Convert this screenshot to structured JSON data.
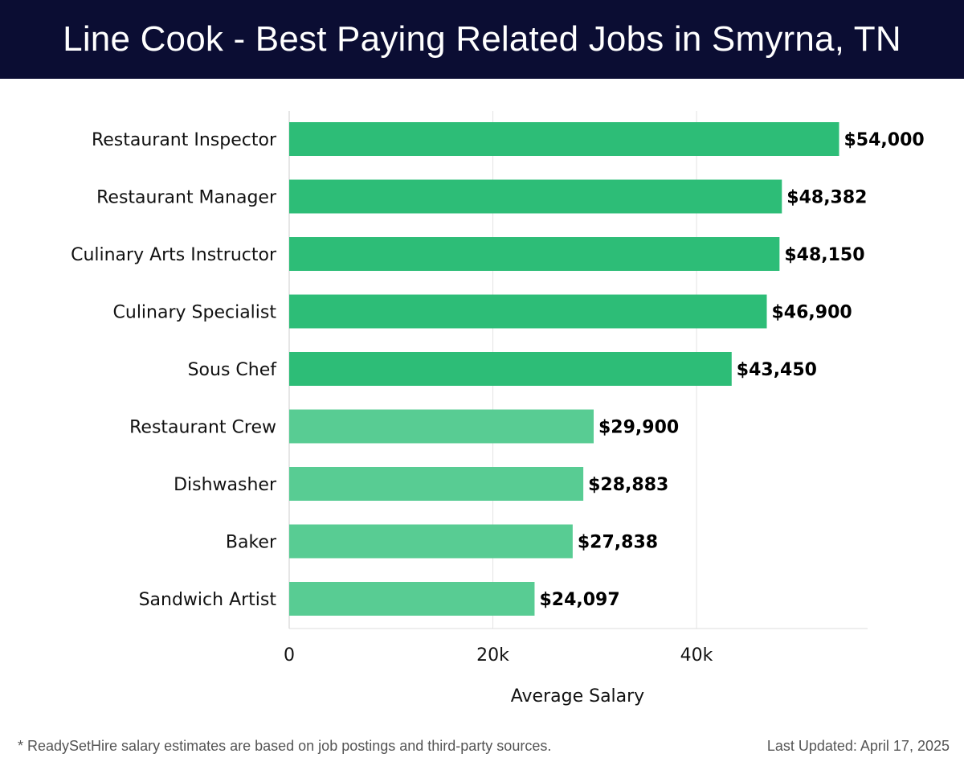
{
  "header": {
    "title": "Line Cook - Best Paying Related Jobs in Smyrna, TN"
  },
  "footer": {
    "note": "* ReadySetHire salary estimates are based on job postings and third-party sources.",
    "updated": "Last Updated: April 17, 2025"
  },
  "colors": {
    "header_bg": "#0b0d33",
    "bar_dark": "#2dbd77",
    "bar_light": "#58cc93",
    "grid": "#e3e3e3"
  },
  "chart_data": {
    "type": "bar",
    "orientation": "horizontal",
    "categories": [
      "Restaurant Inspector",
      "Restaurant Manager",
      "Culinary Arts Instructor",
      "Culinary Specialist",
      "Sous Chef",
      "Restaurant Crew",
      "Dishwasher",
      "Baker",
      "Sandwich Artist"
    ],
    "values": [
      54000,
      48382,
      48150,
      46900,
      43450,
      29900,
      28883,
      27838,
      24097
    ],
    "value_labels": [
      "$54,000",
      "$48,382",
      "$48,150",
      "$46,900",
      "$43,450",
      "$29,900",
      "$28,883",
      "$27,838",
      "$24,097"
    ],
    "xlabel": "Average Salary",
    "ylabel": "",
    "xlim": [
      0,
      56800
    ],
    "xticks": [
      0,
      20000,
      40000
    ],
    "xtick_labels": [
      "0",
      "20k",
      "40k"
    ],
    "grid": true
  }
}
